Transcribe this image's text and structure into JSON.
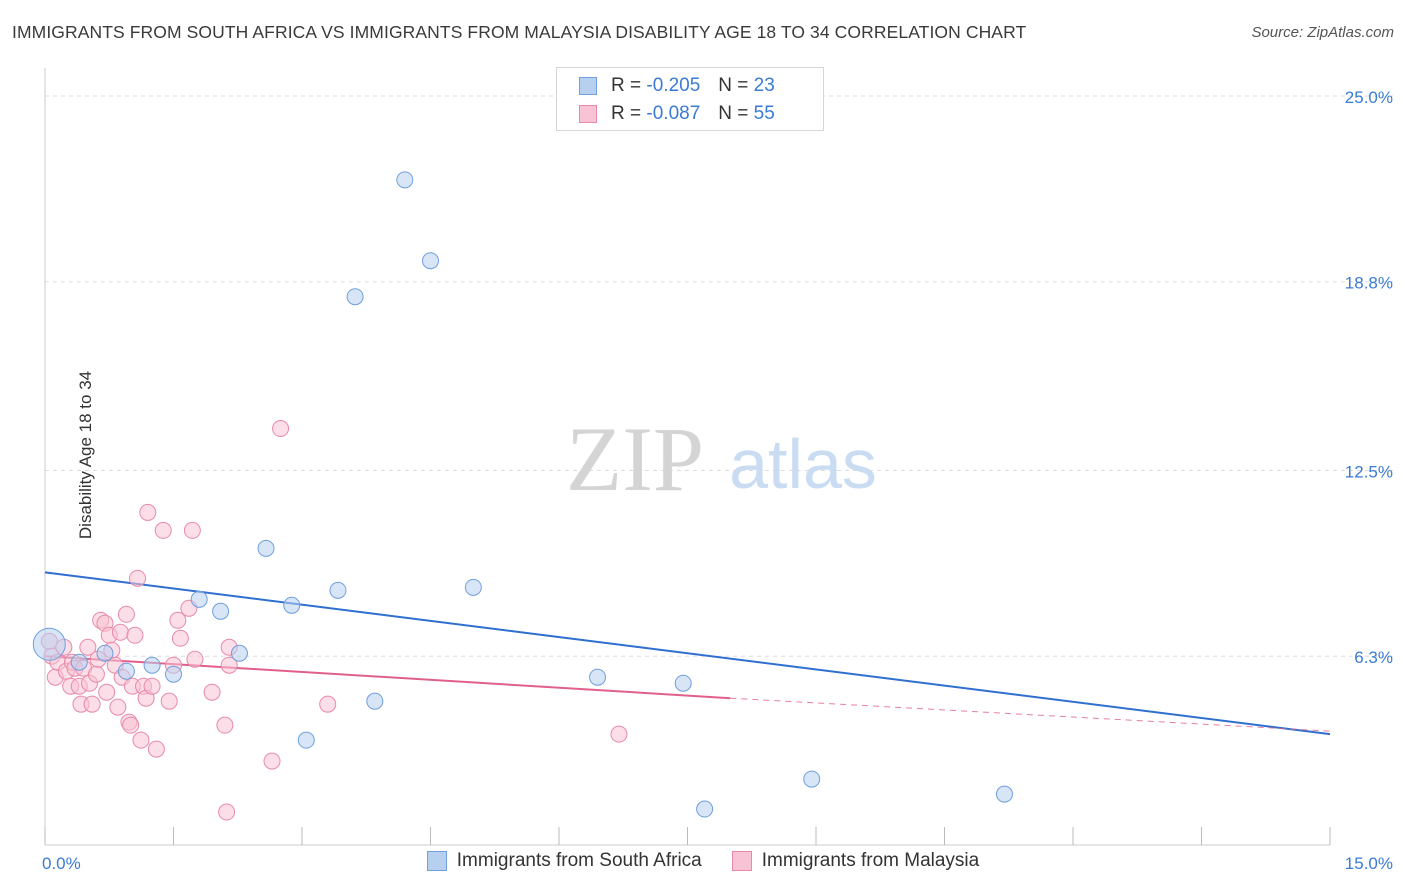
{
  "title": "IMMIGRANTS FROM SOUTH AFRICA VS IMMIGRANTS FROM MALAYSIA DISABILITY AGE 18 TO 34 CORRELATION CHART",
  "source": "Source: ZipAtlas.com",
  "watermark": {
    "zip": "ZIP",
    "atlas": "atlas"
  },
  "legend": [
    {
      "r_label": "R =",
      "r_value": "-0.205",
      "n_label": "N =",
      "n_value": "23"
    },
    {
      "r_label": "R =",
      "r_value": "-0.087",
      "n_label": "N =",
      "n_value": "55"
    }
  ],
  "colors": {
    "blue_fill": "#b8d0f0",
    "blue_stroke": "#6f9fdc",
    "blue_line": "#2f6fd0",
    "pink_fill": "#f8c3d4",
    "pink_stroke": "#e88aa8",
    "pink_line": "#e0608a",
    "tick_label": "#3a7bd5",
    "grid": "#dddddd"
  },
  "chart_data": {
    "type": "scatter",
    "title": "IMMIGRANTS FROM SOUTH AFRICA VS IMMIGRANTS FROM MALAYSIA DISABILITY AGE 18 TO 34 CORRELATION CHART",
    "xlabel": "",
    "ylabel": "Disability Age 18 to 34",
    "xlim": [
      0,
      15
    ],
    "ylim": [
      0,
      25.8
    ],
    "x_tick_labels": [
      "0.0%",
      "15.0%"
    ],
    "y_ticks": [
      6.3,
      12.5,
      18.8,
      25.0
    ],
    "y_tick_labels": [
      "6.3%",
      "12.5%",
      "18.8%",
      "25.0%"
    ],
    "grid": true,
    "series": [
      {
        "name": "Immigrants from South Africa",
        "color": "blue",
        "points": [
          [
            0.05,
            6.7
          ],
          [
            0.4,
            6.1
          ],
          [
            0.7,
            6.4
          ],
          [
            0.95,
            5.8
          ],
          [
            1.25,
            6.0
          ],
          [
            1.5,
            5.7
          ],
          [
            1.8,
            8.2
          ],
          [
            2.05,
            7.8
          ],
          [
            2.27,
            6.4
          ],
          [
            2.58,
            9.9
          ],
          [
            2.88,
            8.0
          ],
          [
            3.05,
            3.5
          ],
          [
            3.42,
            8.5
          ],
          [
            3.62,
            18.3
          ],
          [
            3.85,
            4.8
          ],
          [
            4.2,
            22.2
          ],
          [
            4.5,
            19.5
          ],
          [
            5.0,
            8.6
          ],
          [
            6.45,
            5.6
          ],
          [
            7.45,
            5.4
          ],
          [
            7.7,
            1.2
          ],
          [
            8.95,
            2.2
          ],
          [
            11.2,
            1.7
          ]
        ],
        "trend": {
          "x": [
            0,
            15
          ],
          "y": [
            9.1,
            3.7
          ]
        }
      },
      {
        "name": "Immigrants from Malaysia",
        "color": "pink",
        "points": [
          [
            0.05,
            6.8
          ],
          [
            0.08,
            6.3
          ],
          [
            0.12,
            5.6
          ],
          [
            0.15,
            6.1
          ],
          [
            0.22,
            6.6
          ],
          [
            0.25,
            5.8
          ],
          [
            0.3,
            5.3
          ],
          [
            0.32,
            6.1
          ],
          [
            0.35,
            5.9
          ],
          [
            0.4,
            5.3
          ],
          [
            0.42,
            4.7
          ],
          [
            0.45,
            5.9
          ],
          [
            0.5,
            6.6
          ],
          [
            0.52,
            5.4
          ],
          [
            0.55,
            4.7
          ],
          [
            0.6,
            5.7
          ],
          [
            0.62,
            6.2
          ],
          [
            0.65,
            7.5
          ],
          [
            0.7,
            7.4
          ],
          [
            0.72,
            5.1
          ],
          [
            0.75,
            7.0
          ],
          [
            0.78,
            6.5
          ],
          [
            0.82,
            6.0
          ],
          [
            0.85,
            4.6
          ],
          [
            0.88,
            7.1
          ],
          [
            0.9,
            5.6
          ],
          [
            0.95,
            7.7
          ],
          [
            0.98,
            4.1
          ],
          [
            1.0,
            4.0
          ],
          [
            1.02,
            5.3
          ],
          [
            1.05,
            7.0
          ],
          [
            1.08,
            8.9
          ],
          [
            1.12,
            3.5
          ],
          [
            1.15,
            5.3
          ],
          [
            1.18,
            4.9
          ],
          [
            1.2,
            11.1
          ],
          [
            1.25,
            5.3
          ],
          [
            1.3,
            3.2
          ],
          [
            1.38,
            10.5
          ],
          [
            1.45,
            4.8
          ],
          [
            1.5,
            6.0
          ],
          [
            1.55,
            7.5
          ],
          [
            1.58,
            6.9
          ],
          [
            1.68,
            7.9
          ],
          [
            1.72,
            10.5
          ],
          [
            1.75,
            6.2
          ],
          [
            1.95,
            5.1
          ],
          [
            2.1,
            4.0
          ],
          [
            2.12,
            1.1
          ],
          [
            2.15,
            6.0
          ],
          [
            2.15,
            6.6
          ],
          [
            2.65,
            2.8
          ],
          [
            2.75,
            13.9
          ],
          [
            3.3,
            4.7
          ],
          [
            6.7,
            3.7
          ]
        ],
        "trend": {
          "x": [
            0,
            8.0
          ],
          "y": [
            6.3,
            4.9
          ]
        },
        "trend_dashed": {
          "x": [
            8.0,
            15
          ],
          "y": [
            4.9,
            3.8
          ]
        }
      }
    ]
  },
  "bottom_legend": [
    "Immigrants from South Africa",
    "Immigrants from Malaysia"
  ]
}
